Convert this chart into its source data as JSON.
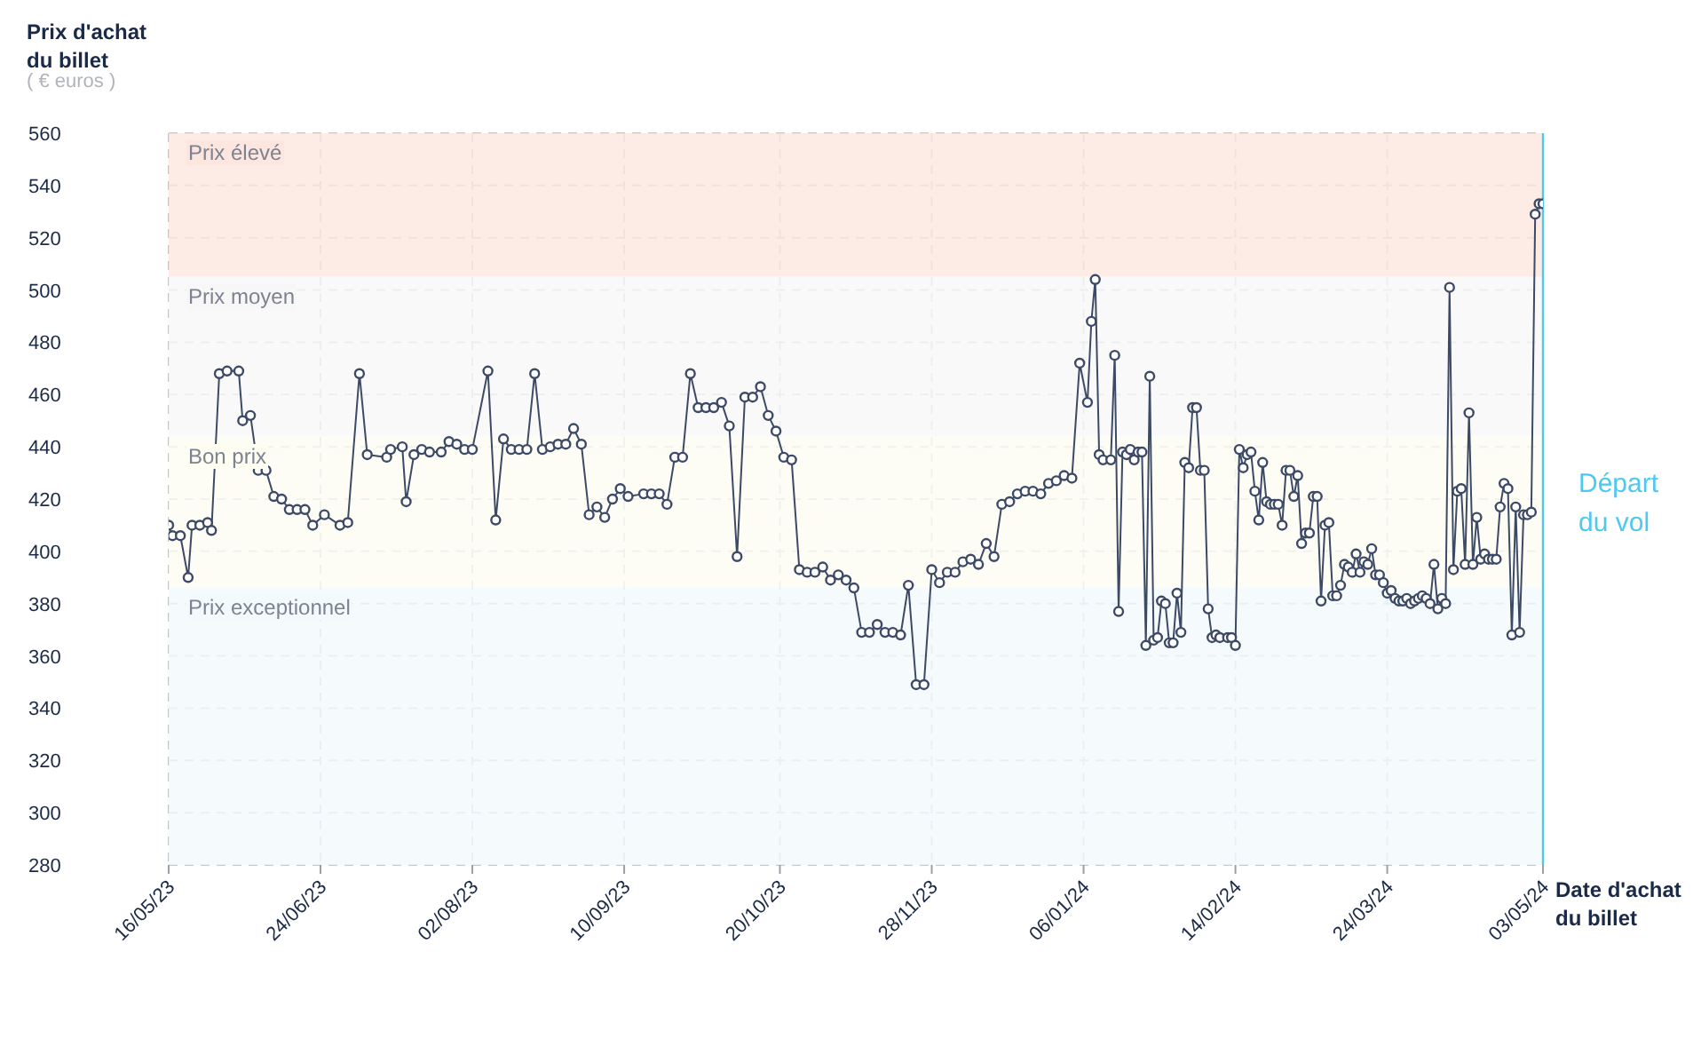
{
  "chart_data": {
    "type": "line",
    "ylabel": "Prix d'achat du billet",
    "xlabel": "Date d'achat du billet",
    "annotations": [
      "( € euros )"
    ],
    "x": [
      "2023-05-16",
      "2023-05-17",
      "2023-05-19",
      "2023-05-21",
      "2023-05-22",
      "2023-05-24",
      "2023-05-26",
      "2023-05-27",
      "2023-05-29",
      "2023-05-31",
      "2023-06-03",
      "2023-06-04",
      "2023-06-06",
      "2023-06-08",
      "2023-06-10",
      "2023-06-12",
      "2023-06-14",
      "2023-06-16",
      "2023-06-18",
      "2023-06-20",
      "2023-06-22",
      "2023-06-25",
      "2023-06-29",
      "2023-07-01",
      "2023-07-04",
      "2023-07-06",
      "2023-07-11",
      "2023-07-12",
      "2023-07-15",
      "2023-07-16",
      "2023-07-18",
      "2023-07-20",
      "2023-07-22",
      "2023-07-25",
      "2023-07-27",
      "2023-07-29",
      "2023-07-31",
      "2023-08-02",
      "2023-08-06",
      "2023-08-08",
      "2023-08-10",
      "2023-08-12",
      "2023-08-14",
      "2023-08-16",
      "2023-08-18",
      "2023-08-20",
      "2023-08-22",
      "2023-08-24",
      "2023-08-26",
      "2023-08-28",
      "2023-08-30",
      "2023-09-01",
      "2023-09-03",
      "2023-09-05",
      "2023-09-07",
      "2023-09-09",
      "2023-09-11",
      "2023-09-15",
      "2023-09-17",
      "2023-09-19",
      "2023-09-21",
      "2023-09-23",
      "2023-09-25",
      "2023-09-27",
      "2023-09-29",
      "2023-10-01",
      "2023-10-03",
      "2023-10-05",
      "2023-10-07",
      "2023-10-09",
      "2023-10-11",
      "2023-10-13",
      "2023-10-15",
      "2023-10-17",
      "2023-10-19",
      "2023-10-21",
      "2023-10-23",
      "2023-10-25",
      "2023-10-27",
      "2023-10-29",
      "2023-10-31",
      "2023-11-02",
      "2023-11-04",
      "2023-11-06",
      "2023-11-08",
      "2023-11-10",
      "2023-11-12",
      "2023-11-14",
      "2023-11-16",
      "2023-11-18",
      "2023-11-20",
      "2023-11-22",
      "2023-11-24",
      "2023-11-26",
      "2023-11-28",
      "2023-11-30",
      "2023-12-02",
      "2023-12-04",
      "2023-12-06",
      "2023-12-08",
      "2023-12-10",
      "2023-12-12",
      "2023-12-14",
      "2023-12-16",
      "2023-12-18",
      "2023-12-20",
      "2023-12-22",
      "2023-12-24",
      "2023-12-26",
      "2023-12-28",
      "2023-12-30",
      "2024-01-01",
      "2024-01-03",
      "2024-01-05",
      "2024-01-07",
      "2024-01-08",
      "2024-01-09",
      "2024-01-10",
      "2024-01-11",
      "2024-01-13",
      "2024-01-14",
      "2024-01-15",
      "2024-01-16",
      "2024-01-17",
      "2024-01-18",
      "2024-01-19",
      "2024-01-20",
      "2024-01-21",
      "2024-01-22",
      "2024-01-23",
      "2024-01-24",
      "2024-01-25",
      "2024-01-26",
      "2024-01-27",
      "2024-01-28",
      "2024-01-29",
      "2024-01-30",
      "2024-01-31",
      "2024-02-01",
      "2024-02-02",
      "2024-02-03",
      "2024-02-04",
      "2024-02-05",
      "2024-02-06",
      "2024-02-07",
      "2024-02-08",
      "2024-02-09",
      "2024-02-10",
      "2024-02-12",
      "2024-02-13",
      "2024-02-14",
      "2024-02-15",
      "2024-02-16",
      "2024-02-17",
      "2024-02-18",
      "2024-02-19",
      "2024-02-20",
      "2024-02-21",
      "2024-02-22",
      "2024-02-23",
      "2024-02-24",
      "2024-02-25",
      "2024-02-26",
      "2024-02-27",
      "2024-02-28",
      "2024-02-29",
      "2024-03-01",
      "2024-03-02",
      "2024-03-03",
      "2024-03-04",
      "2024-03-05",
      "2024-03-06",
      "2024-03-07",
      "2024-03-08",
      "2024-03-09",
      "2024-03-10",
      "2024-03-11",
      "2024-03-12",
      "2024-03-13",
      "2024-03-14",
      "2024-03-15",
      "2024-03-16",
      "2024-03-17",
      "2024-03-18",
      "2024-03-19",
      "2024-03-20",
      "2024-03-21",
      "2024-03-22",
      "2024-03-23",
      "2024-03-24",
      "2024-03-25",
      "2024-03-26",
      "2024-03-27",
      "2024-03-28",
      "2024-03-29",
      "2024-03-30",
      "2024-03-31",
      "2024-04-01",
      "2024-04-02",
      "2024-04-03",
      "2024-04-04",
      "2024-04-05",
      "2024-04-06",
      "2024-04-07",
      "2024-04-08",
      "2024-04-09",
      "2024-04-10",
      "2024-04-11",
      "2024-04-12",
      "2024-04-13",
      "2024-04-14",
      "2024-04-15",
      "2024-04-16",
      "2024-04-17",
      "2024-04-18",
      "2024-04-19",
      "2024-04-20",
      "2024-04-21",
      "2024-04-22",
      "2024-04-23",
      "2024-04-24",
      "2024-04-25",
      "2024-04-26",
      "2024-04-27",
      "2024-04-28",
      "2024-04-29",
      "2024-04-30",
      "2024-05-01",
      "2024-05-02",
      "2024-05-03"
    ],
    "series": [
      {
        "color": "#3d4a66",
        "values": [
          410,
          406,
          406,
          390,
          410,
          410,
          411,
          408,
          468,
          469,
          469,
          450,
          452,
          431,
          431,
          421,
          420,
          416,
          416,
          416,
          410,
          414,
          410,
          411,
          468,
          437,
          436,
          439,
          440,
          419,
          437,
          439,
          438,
          438,
          442,
          441,
          439,
          439,
          469,
          412,
          443,
          439,
          439,
          439,
          468,
          439,
          440,
          441,
          441,
          447,
          441,
          414,
          417,
          413,
          420,
          424,
          421,
          422,
          422,
          422,
          418,
          436,
          436,
          468,
          455,
          455,
          455,
          457,
          448,
          398,
          459,
          459,
          463,
          452,
          446,
          436,
          435,
          393,
          392,
          392,
          394,
          389,
          391,
          389,
          386,
          369,
          369,
          372,
          369,
          369,
          368,
          387,
          349,
          349,
          393,
          388,
          392,
          392,
          396,
          397,
          395,
          403,
          398,
          418,
          419,
          422,
          423,
          423,
          422,
          426,
          427,
          429,
          428,
          472,
          457,
          488,
          504,
          437,
          435,
          435,
          475,
          377,
          438,
          437,
          439,
          435,
          438,
          438,
          364,
          467,
          366,
          367,
          381,
          380,
          365,
          365,
          384,
          369,
          434,
          432,
          455,
          455,
          431,
          431,
          378,
          367,
          368,
          367,
          367,
          367,
          364,
          439,
          432,
          437,
          438,
          423,
          412,
          434,
          419,
          418,
          418,
          418,
          410,
          431,
          431,
          421,
          429,
          403,
          407,
          407,
          421,
          421,
          381,
          410,
          411,
          383,
          383,
          387,
          395,
          394,
          392,
          399,
          392,
          396,
          395,
          401,
          391,
          391,
          388,
          384,
          385,
          382,
          381,
          381,
          382,
          380,
          381,
          382,
          383,
          382,
          380,
          395,
          378,
          382,
          380,
          501,
          393,
          423,
          424,
          395,
          453,
          395,
          413,
          397,
          399,
          397,
          397,
          397,
          417,
          426,
          424,
          368,
          417,
          369,
          414,
          414,
          415,
          529,
          533,
          533
        ]
      }
    ],
    "marker": "circle",
    "line_style": "solid",
    "grid": true,
    "xlim": [
      "2023-05-16",
      "2024-05-03"
    ],
    "xticks": [
      {
        "value": "2023-05-16",
        "label": "16/05/23"
      },
      {
        "value": "2023-06-24",
        "label": "24/06/23"
      },
      {
        "value": "2023-08-02",
        "label": "02/08/23"
      },
      {
        "value": "2023-09-10",
        "label": "10/09/23"
      },
      {
        "value": "2023-10-20",
        "label": "20/10/23"
      },
      {
        "value": "2023-11-28",
        "label": "28/11/23"
      },
      {
        "value": "2024-01-06",
        "label": "06/01/24"
      },
      {
        "value": "2024-02-14",
        "label": "14/02/24"
      },
      {
        "value": "2024-03-24",
        "label": "24/03/24"
      },
      {
        "value": "2024-05-03",
        "label": "03/05/24"
      }
    ],
    "ylim": [
      280,
      560
    ],
    "yticks": [
      280,
      300,
      320,
      340,
      360,
      380,
      400,
      420,
      440,
      460,
      480,
      500,
      520,
      540,
      560
    ],
    "bands": [
      {
        "axis": "y",
        "from": 505,
        "to": 560,
        "label": "Prix élevé",
        "color": "#fde6e0"
      },
      {
        "axis": "y",
        "from": 444,
        "to": 505,
        "label": "Prix moyen",
        "color": "#f7f7f8"
      },
      {
        "axis": "y",
        "from": 386,
        "to": 444,
        "label": "Bon prix",
        "color": "#fdfdf2"
      },
      {
        "axis": "y",
        "from": 280,
        "to": 386,
        "label": "Prix exceptionnel",
        "color": "#f3fafd"
      }
    ],
    "ref_lines": [
      {
        "axis": "x",
        "value": "2024-05-03",
        "label": "Départ du vol",
        "color": "#4fc8f0"
      }
    ]
  }
}
